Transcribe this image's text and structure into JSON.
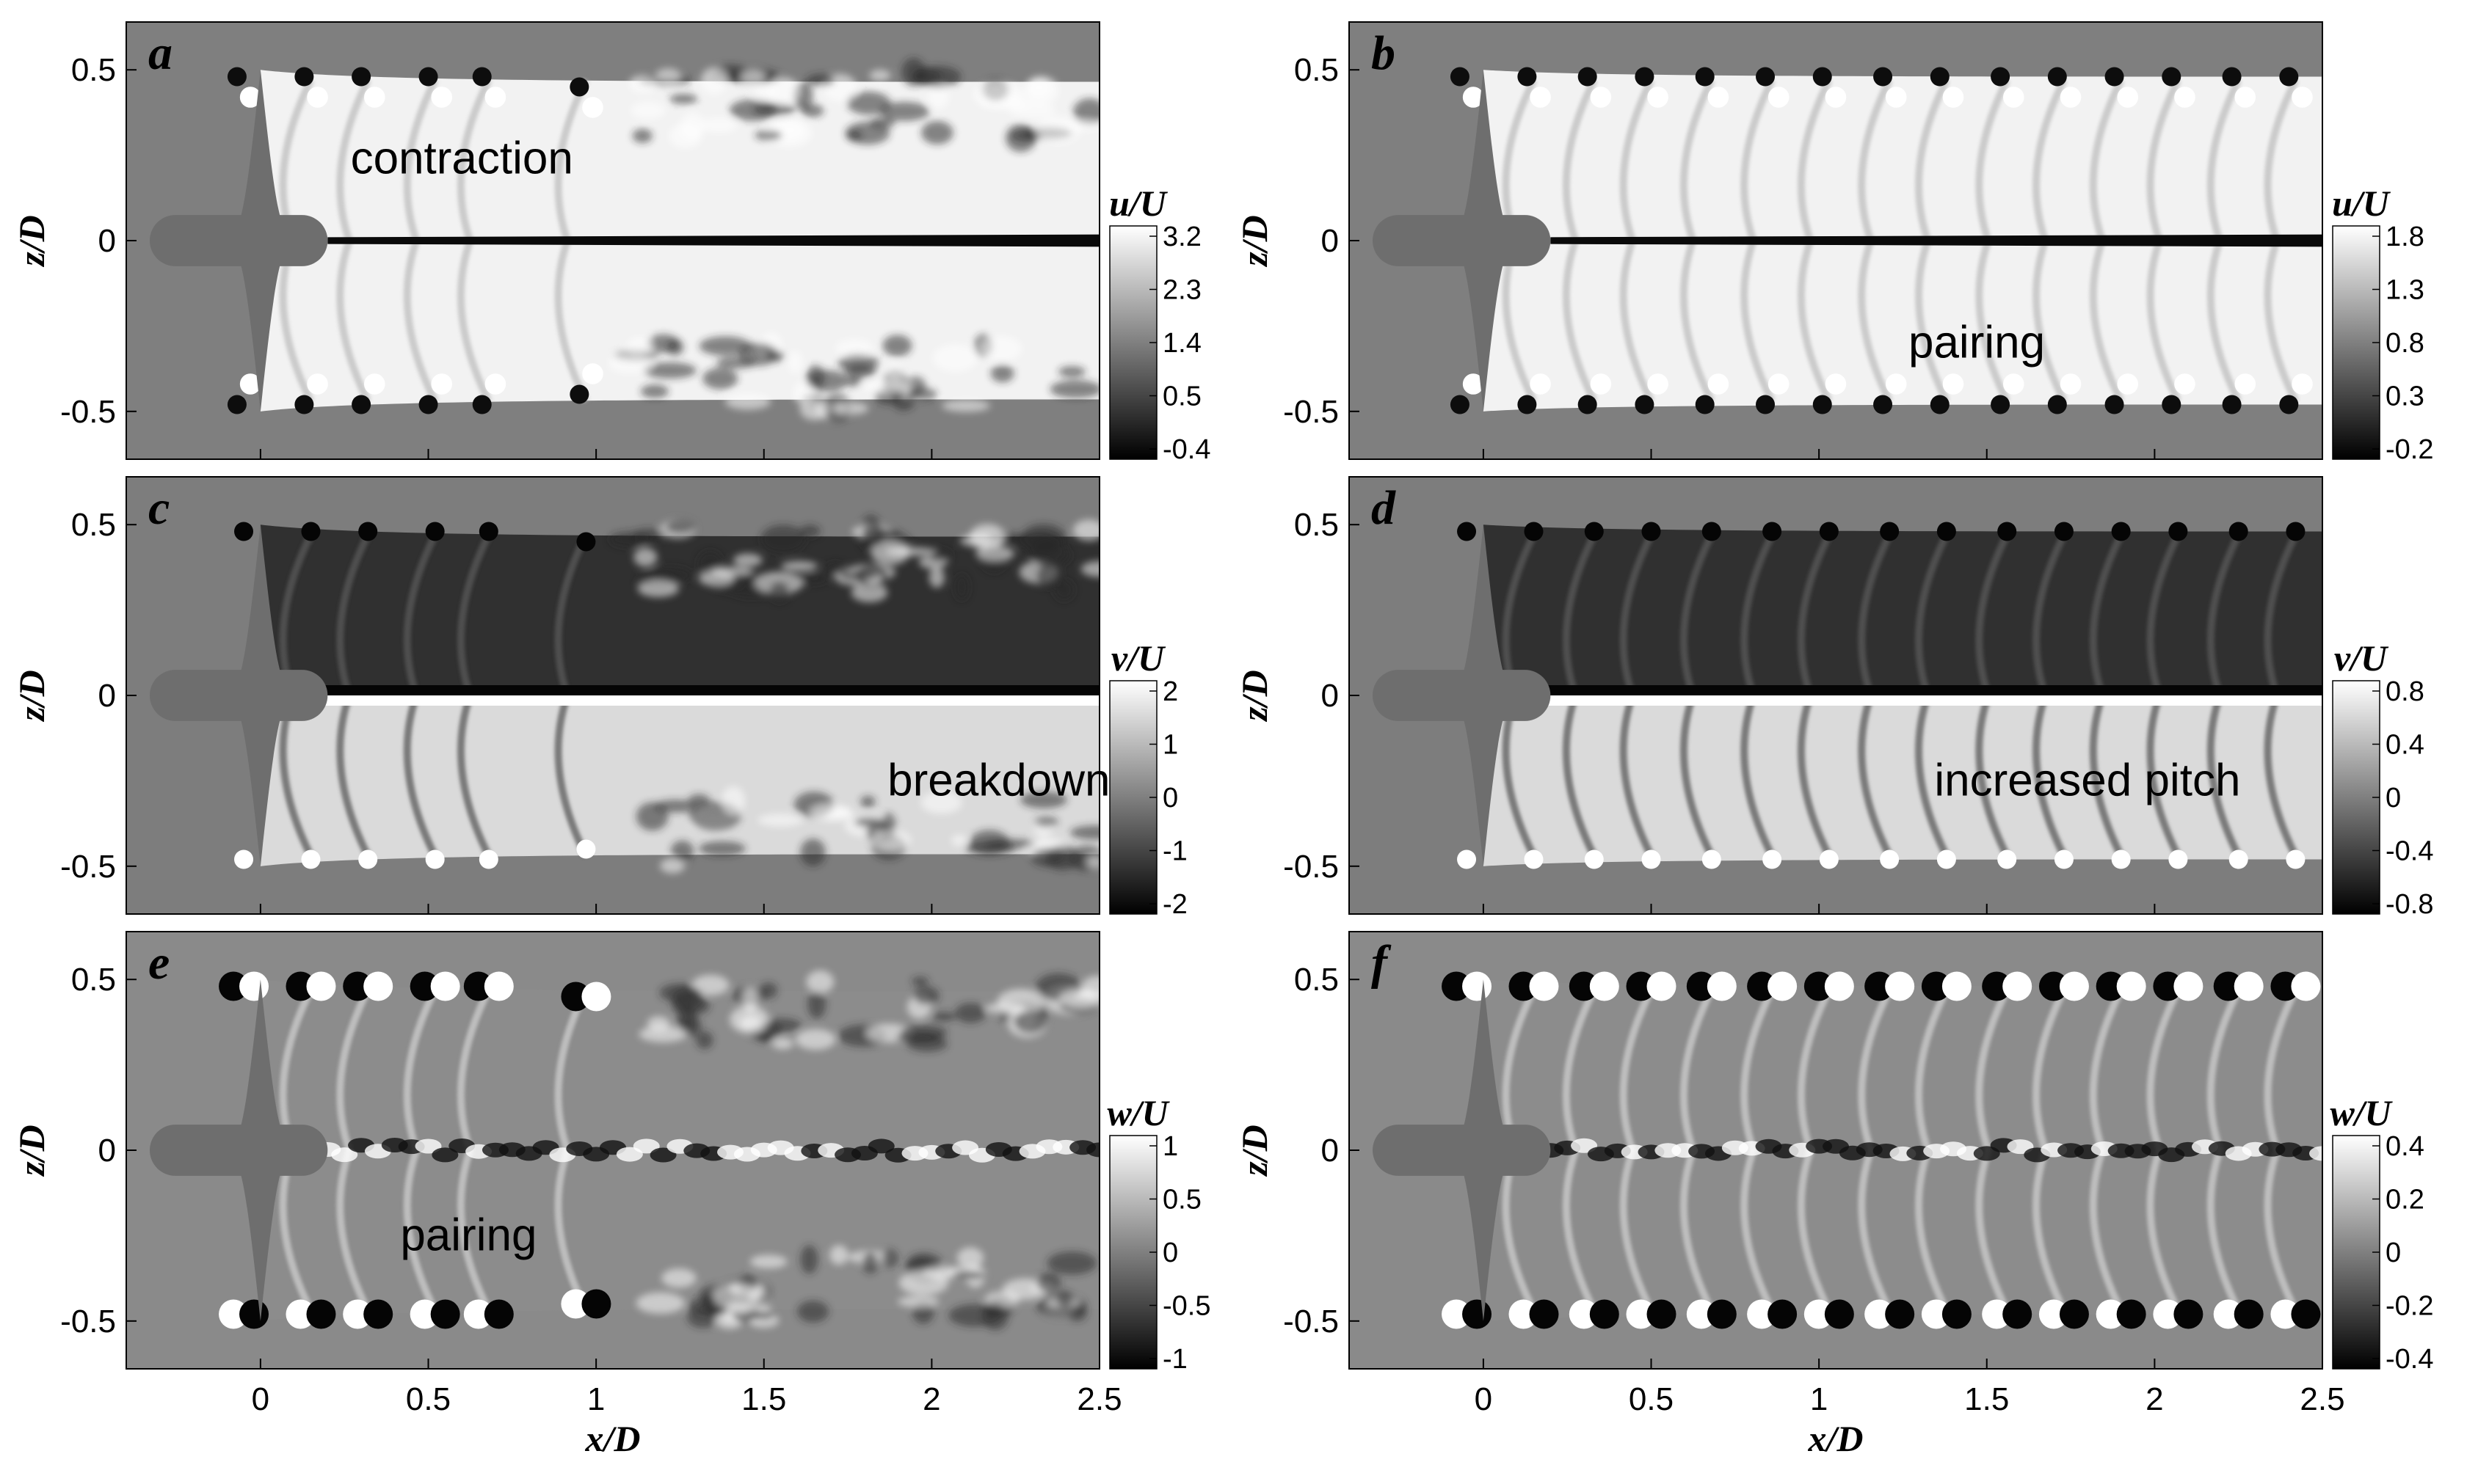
{
  "chart_data": [
    {
      "panel": "a",
      "type": "heatmap",
      "xlabel": "",
      "ylabel": "z/D",
      "xlim": [
        -0.4,
        2.5
      ],
      "ylim": [
        -0.64,
        0.64
      ],
      "xticks": [],
      "yticks": [
        0.5,
        0,
        -0.5
      ],
      "ytick_labels": [
        "0.5",
        "0",
        "-0.5"
      ],
      "colorbar": {
        "title": "u/U",
        "ticks": [
          "3.2",
          "2.3",
          "1.4",
          "0.5",
          "-0.4"
        ],
        "range": [
          -0.4,
          3.2
        ]
      },
      "annotations": [
        {
          "text": "contraction",
          "x": 0.6,
          "y": 0.24
        }
      ],
      "vortex_cores_x": [
        -0.05,
        0.15,
        0.32,
        0.52,
        0.68,
        0.97
      ],
      "wake_style": "breakdown"
    },
    {
      "panel": "b",
      "type": "heatmap",
      "xlabel": "",
      "ylabel": "z/D",
      "xlim": [
        -0.4,
        2.5
      ],
      "ylim": [
        -0.64,
        0.64
      ],
      "xticks": [],
      "yticks": [
        0.5,
        0,
        -0.5
      ],
      "ytick_labels": [
        "0.5",
        "0",
        "-0.5"
      ],
      "colorbar": {
        "title": "u/U",
        "ticks": [
          "1.8",
          "1.3",
          "0.8",
          "0.3",
          "-0.2"
        ],
        "range": [
          -0.2,
          1.8
        ]
      },
      "annotations": [
        {
          "text": "pairing",
          "x": 1.47,
          "y": -0.3
        }
      ],
      "vortex_cores_x": [
        -0.05,
        0.15,
        0.33,
        0.5,
        0.68,
        0.86,
        1.03,
        1.21,
        1.38,
        1.56,
        1.73,
        1.9,
        2.07,
        2.25,
        2.42
      ],
      "wake_style": "stable"
    },
    {
      "panel": "c",
      "type": "heatmap",
      "xlabel": "",
      "ylabel": "z/D",
      "xlim": [
        -0.4,
        2.5
      ],
      "ylim": [
        -0.64,
        0.64
      ],
      "xticks": [],
      "yticks": [
        0.5,
        0,
        -0.5
      ],
      "ytick_labels": [
        "0.5",
        "0",
        "-0.5"
      ],
      "colorbar": {
        "title": "v/U",
        "ticks": [
          "2",
          "1",
          "0",
          "-1",
          "-2"
        ],
        "range": [
          -2,
          2
        ]
      },
      "annotations": [
        {
          "text": "breakdown",
          "x": 2.2,
          "y": -0.25
        }
      ],
      "vortex_cores_x": [
        -0.05,
        0.15,
        0.32,
        0.52,
        0.68,
        0.97
      ],
      "wake_style": "breakdown"
    },
    {
      "panel": "d",
      "type": "heatmap",
      "xlabel": "",
      "ylabel": "z/D",
      "xlim": [
        -0.4,
        2.5
      ],
      "ylim": [
        -0.64,
        0.64
      ],
      "xticks": [],
      "yticks": [
        0.5,
        0,
        -0.5
      ],
      "ytick_labels": [
        "0.5",
        "0",
        "-0.5"
      ],
      "colorbar": {
        "title": "v/U",
        "ticks": [
          "0.8",
          "0.4",
          "0",
          "-0.4",
          "-0.8"
        ],
        "range": [
          -0.8,
          0.8
        ]
      },
      "annotations": [
        {
          "text": "increased pitch",
          "x": 1.8,
          "y": -0.25
        }
      ],
      "vortex_cores_x": [
        -0.05,
        0.15,
        0.33,
        0.5,
        0.68,
        0.86,
        1.03,
        1.21,
        1.38,
        1.56,
        1.73,
        1.9,
        2.07,
        2.25,
        2.42
      ],
      "wake_style": "stable"
    },
    {
      "panel": "e",
      "type": "heatmap",
      "xlabel": "x/D",
      "ylabel": "z/D",
      "xlim": [
        -0.4,
        2.5
      ],
      "ylim": [
        -0.64,
        0.64
      ],
      "xticks": [
        0,
        0.5,
        1,
        1.5,
        2,
        2.5
      ],
      "xtick_labels": [
        "0",
        "0.5",
        "1",
        "1.5",
        "2",
        "2.5"
      ],
      "yticks": [
        0.5,
        0,
        -0.5
      ],
      "ytick_labels": [
        "0.5",
        "0",
        "-0.5"
      ],
      "colorbar": {
        "title": "w/U",
        "ticks": [
          "1",
          "0.5",
          "0",
          "-0.5",
          "-1"
        ],
        "range": [
          -1,
          1
        ]
      },
      "annotations": [
        {
          "text": "pairing",
          "x": 0.62,
          "y": -0.25
        }
      ],
      "vortex_cores_x": [
        -0.05,
        0.15,
        0.32,
        0.52,
        0.68,
        0.97
      ],
      "wake_style": "breakdown"
    },
    {
      "panel": "f",
      "type": "heatmap",
      "xlabel": "x/D",
      "ylabel": "z/D",
      "xlim": [
        -0.4,
        2.5
      ],
      "ylim": [
        -0.64,
        0.64
      ],
      "xticks": [
        0,
        0.5,
        1,
        1.5,
        2,
        2.5
      ],
      "xtick_labels": [
        "0",
        "0.5",
        "1",
        "1.5",
        "2",
        "2.5"
      ],
      "yticks": [
        0.5,
        0,
        -0.5
      ],
      "ytick_labels": [
        "0.5",
        "0",
        "-0.5"
      ],
      "colorbar": {
        "title": "w/U",
        "ticks": [
          "0.4",
          "0.2",
          "0",
          "-0.2",
          "-0.4"
        ],
        "range": [
          -0.4,
          0.4
        ]
      },
      "annotations": [],
      "vortex_cores_x": [
        -0.05,
        0.15,
        0.33,
        0.5,
        0.68,
        0.86,
        1.03,
        1.21,
        1.38,
        1.56,
        1.73,
        1.9,
        2.07,
        2.25,
        2.42
      ],
      "wake_style": "stable"
    }
  ]
}
